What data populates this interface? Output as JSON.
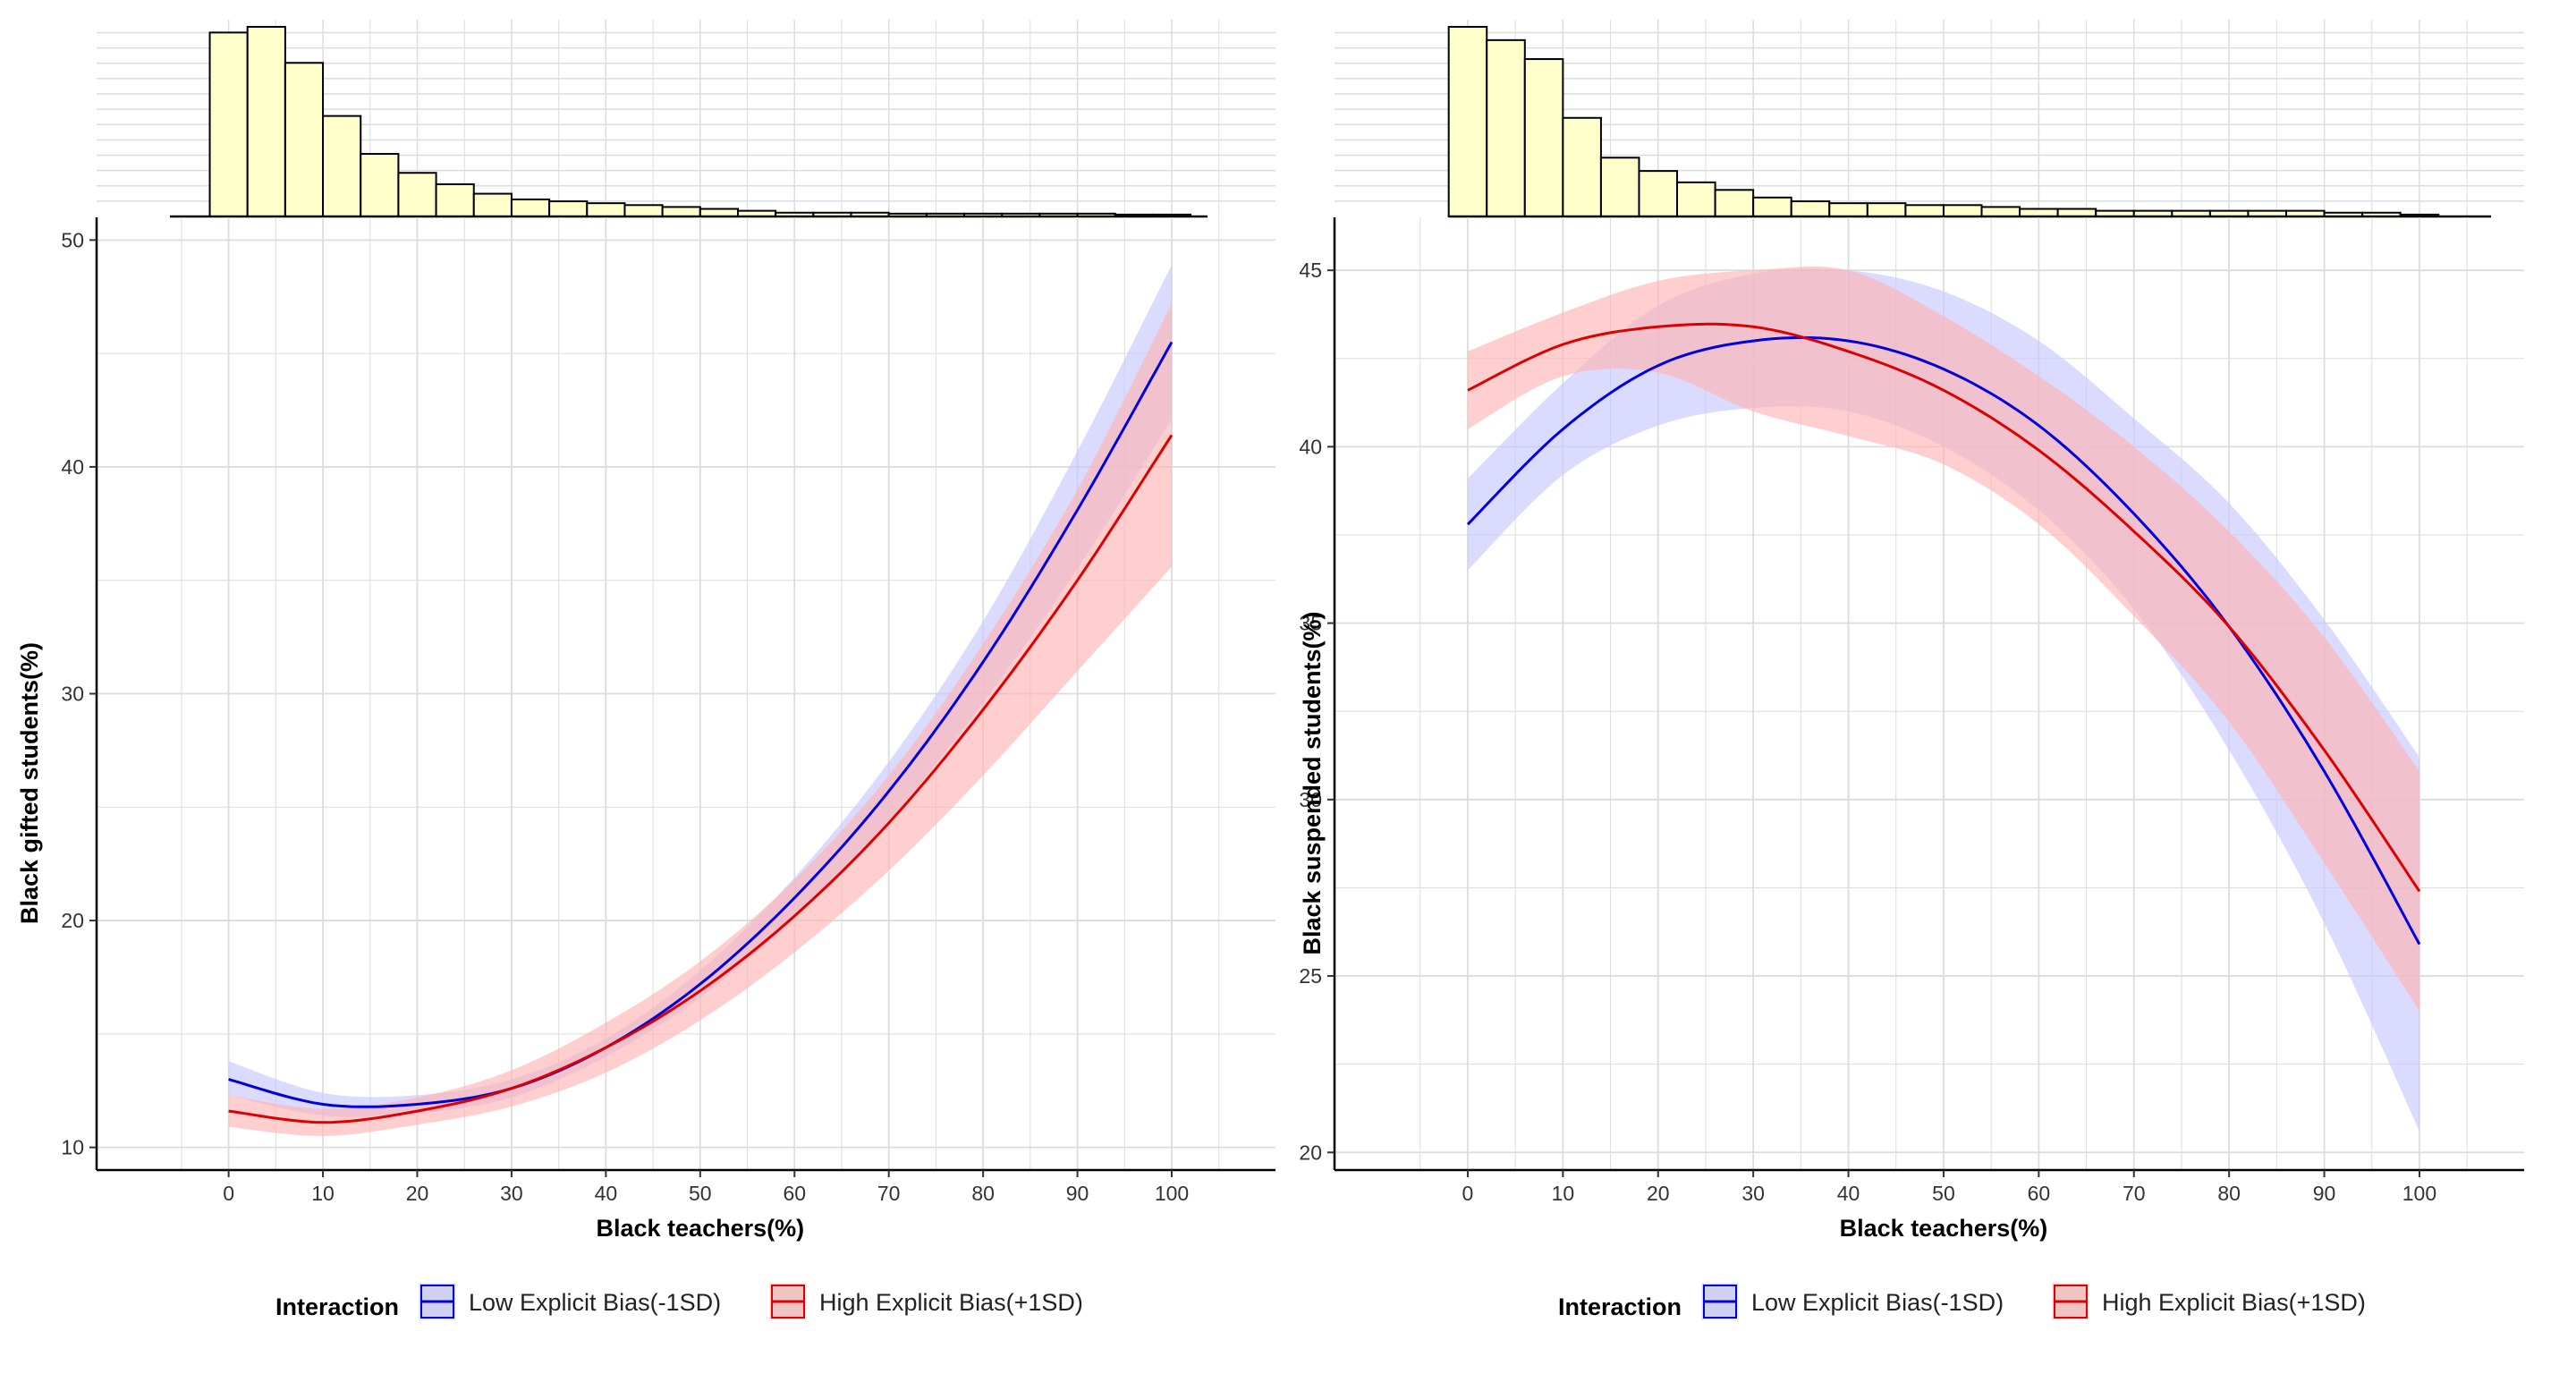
{
  "colors": {
    "low_line": "#0000dd",
    "low_band": "#c8c8ff",
    "high_line": "#dd0000",
    "high_band": "#ffb4b4",
    "histogram_fill": "#ffffcc",
    "grid": "#dcdcdc"
  },
  "chart_data": [
    {
      "type": "line",
      "title": "",
      "xlabel": "Black teachers(%)",
      "ylabel": "Black gifted students(%)",
      "xlim": [
        -14,
        111
      ],
      "ylim": [
        9,
        51
      ],
      "x_ticks": [
        0,
        10,
        20,
        30,
        40,
        50,
        60,
        70,
        80,
        90,
        100
      ],
      "y_ticks": [
        10,
        20,
        30,
        40,
        50
      ],
      "grid": true,
      "legend_title": "Interaction",
      "legend_position": "bottom",
      "x": [
        0,
        10,
        20,
        30,
        40,
        50,
        60,
        70,
        80,
        90,
        100
      ],
      "series": [
        {
          "name": "Low Explicit Bias(-1SD)",
          "color": "#0000dd",
          "values": [
            13.0,
            11.9,
            11.9,
            12.6,
            14.4,
            17.2,
            21.0,
            25.7,
            31.4,
            38.1,
            45.5
          ],
          "ci_low": [
            12.3,
            11.4,
            11.5,
            12.2,
            14.0,
            16.6,
            20.1,
            24.4,
            29.6,
            35.5,
            42.1
          ],
          "ci_high": [
            13.8,
            12.4,
            12.3,
            13.0,
            14.8,
            17.8,
            21.9,
            27.0,
            33.2,
            40.7,
            48.9
          ]
        },
        {
          "name": "High Explicit Bias(+1SD)",
          "color": "#dd0000",
          "values": [
            11.6,
            11.1,
            11.6,
            12.6,
            14.4,
            16.9,
            20.2,
            24.3,
            29.3,
            35.0,
            41.4
          ],
          "ci_low": [
            10.9,
            10.5,
            11.0,
            11.8,
            13.3,
            15.6,
            18.6,
            22.2,
            26.4,
            31.0,
            35.6
          ],
          "ci_high": [
            12.3,
            11.7,
            12.2,
            13.4,
            15.5,
            18.2,
            21.8,
            26.4,
            32.2,
            39.0,
            47.2
          ]
        }
      ],
      "histogram": {
        "bin_width": 4,
        "bin_starts": [
          -2,
          2,
          6,
          10,
          14,
          18,
          22,
          26,
          30,
          34,
          38,
          42,
          46,
          50,
          54,
          58,
          62,
          66,
          70,
          74,
          78,
          82,
          86,
          90,
          94,
          98
        ],
        "counts": [
          97,
          100,
          81,
          53,
          33,
          23,
          17,
          12,
          9,
          8,
          7,
          6,
          5,
          4,
          3,
          2,
          2,
          2,
          1.5,
          1.5,
          1.5,
          1.5,
          1.5,
          1.5,
          1,
          1
        ]
      }
    },
    {
      "type": "line",
      "title": "",
      "xlabel": "Black teachers(%)",
      "ylabel": "Black suspended students(%)",
      "xlim": [
        -14,
        111
      ],
      "ylim": [
        19.5,
        46.5
      ],
      "x_ticks": [
        0,
        10,
        20,
        30,
        40,
        50,
        60,
        70,
        80,
        90,
        100
      ],
      "y_ticks": [
        20,
        25,
        30,
        35,
        40,
        45
      ],
      "grid": true,
      "legend_title": "Interaction",
      "legend_position": "bottom",
      "x": [
        0,
        10,
        20,
        30,
        40,
        50,
        60,
        70,
        80,
        90,
        100
      ],
      "series": [
        {
          "name": "Low Explicit Bias(-1SD)",
          "color": "#0000dd",
          "values": [
            37.8,
            40.5,
            42.3,
            43.0,
            43.0,
            42.2,
            40.6,
            38.1,
            34.9,
            30.8,
            25.9
          ],
          "ci_low": [
            36.5,
            39.2,
            40.6,
            41.1,
            41.0,
            40.0,
            38.2,
            35.4,
            31.4,
            26.5,
            20.6
          ],
          "ci_high": [
            39.1,
            41.8,
            44.0,
            44.9,
            45.0,
            44.4,
            43.0,
            40.8,
            38.4,
            35.1,
            31.2
          ]
        },
        {
          "name": "High Explicit Bias(+1SD)",
          "color": "#dd0000",
          "values": [
            41.6,
            42.9,
            43.4,
            43.4,
            42.7,
            41.6,
            39.9,
            37.6,
            34.9,
            31.4,
            27.4
          ],
          "ci_low": [
            40.5,
            42.0,
            42.1,
            41.0,
            40.3,
            39.5,
            37.8,
            35.2,
            32.2,
            28.2,
            24.0
          ],
          "ci_high": [
            42.7,
            43.8,
            44.7,
            45.0,
            45.0,
            43.7,
            42.0,
            40.0,
            37.6,
            34.6,
            30.8
          ]
        }
      ],
      "histogram": {
        "bin_width": 4,
        "bin_starts": [
          -2,
          2,
          6,
          10,
          14,
          18,
          22,
          26,
          30,
          34,
          38,
          42,
          46,
          50,
          54,
          58,
          62,
          66,
          70,
          74,
          78,
          82,
          86,
          90,
          94,
          98
        ],
        "counts": [
          100,
          93,
          83,
          52,
          31,
          24,
          18,
          14,
          10,
          8,
          7,
          7,
          6,
          6,
          5,
          4,
          4,
          3,
          3,
          3,
          3,
          3,
          3,
          2,
          2,
          1
        ]
      }
    }
  ]
}
